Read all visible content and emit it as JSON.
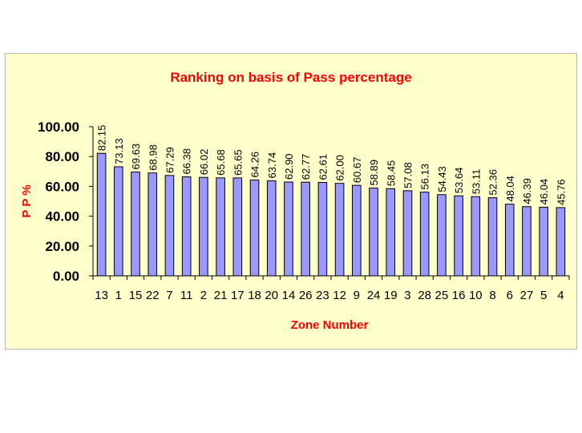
{
  "chart_data": {
    "type": "bar",
    "title": "Ranking on basis of Pass percentage",
    "xlabel": "Zone Number",
    "ylabel": "P P %",
    "ylim": [
      0,
      100
    ],
    "yticks": [
      "0.00",
      "20.00",
      "40.00",
      "60.00",
      "80.00",
      "100.00"
    ],
    "grid": false,
    "legend": "none",
    "colors": {
      "bar": "#9999ff",
      "background": "#ffffcc",
      "text_accent": "#ff0000"
    },
    "categories": [
      "13",
      "1",
      "15",
      "22",
      "7",
      "11",
      "2",
      "21",
      "17",
      "18",
      "20",
      "14",
      "26",
      "23",
      "12",
      "9",
      "24",
      "19",
      "3",
      "28",
      "25",
      "16",
      "10",
      "8",
      "6",
      "27",
      "5",
      "4"
    ],
    "values": [
      82.15,
      73.13,
      69.63,
      68.98,
      67.29,
      66.38,
      66.02,
      65.68,
      65.65,
      64.26,
      63.74,
      62.9,
      62.77,
      62.61,
      62.0,
      60.67,
      58.89,
      58.45,
      57.08,
      56.13,
      54.43,
      53.64,
      53.11,
      52.36,
      48.04,
      46.39,
      46.04,
      45.76
    ],
    "value_labels": [
      "82.15",
      "73.13",
      "69.63",
      "68.98",
      "67.29",
      "66.38",
      "66.02",
      "65.68",
      "65.65",
      "64.26",
      "63.74",
      "62.90",
      "62.77",
      "62.61",
      "62.00",
      "60.67",
      "58.89",
      "58.45",
      "57.08",
      "56.13",
      "54.43",
      "53.64",
      "53.11",
      "52.36",
      "48.04",
      "46.39",
      "46.04",
      "45.76"
    ]
  }
}
